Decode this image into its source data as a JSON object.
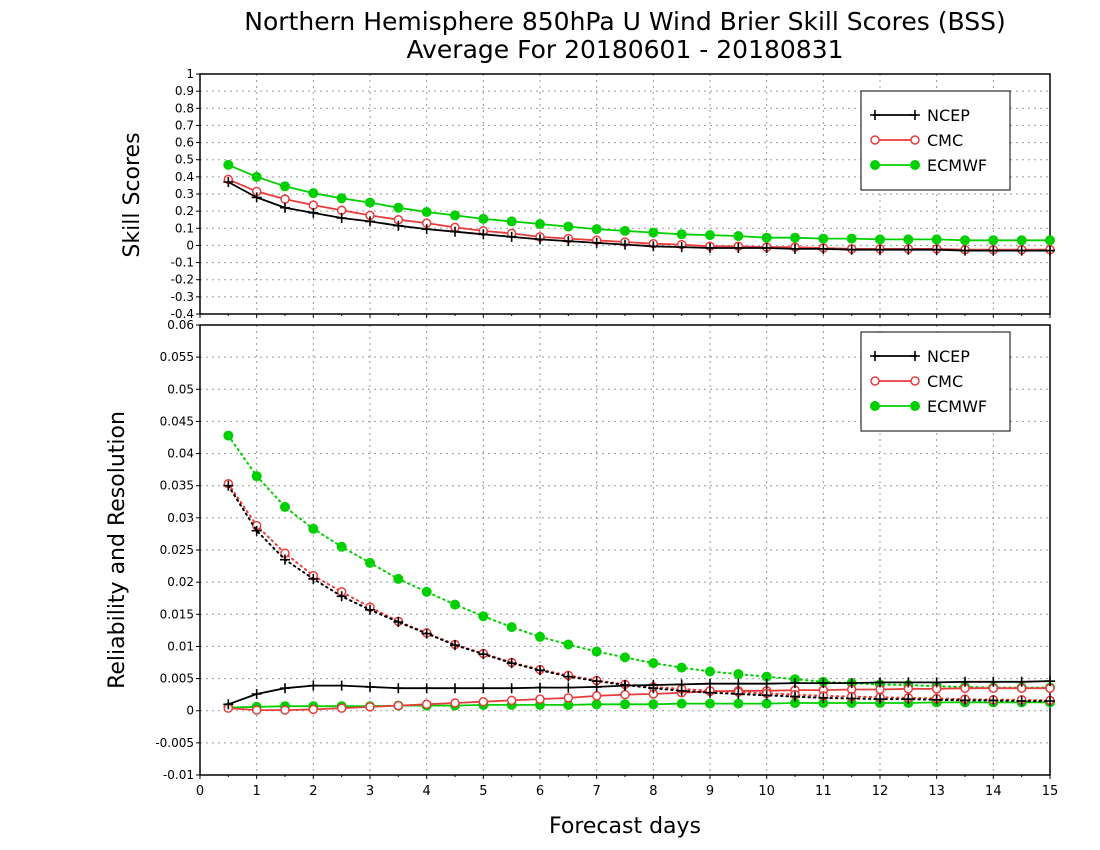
{
  "title": "Northern Hemisphere 850hPa U Wind Brier Skill Scores (BSS)",
  "subtitle": "Average For 20180601 - 20180831",
  "xlabel": "Forecast days",
  "colors": {
    "NCEP": "#000000",
    "CMC": "#e83c3c",
    "ECMWF": "#00d000",
    "grid": "#9a9a9a"
  },
  "chart_data": [
    {
      "type": "line",
      "panel": "top",
      "ylabel": "Skill Scores",
      "xlim": [
        0,
        15
      ],
      "ylim": [
        -0.4,
        1
      ],
      "x_ticks": [
        0,
        1,
        2,
        3,
        4,
        5,
        6,
        7,
        8,
        9,
        10,
        11,
        12,
        13,
        14,
        15
      ],
      "y_ticks": [
        "-0.4",
        "-0.3",
        "-0.2",
        "-0.1",
        "0",
        "0.1",
        "0.2",
        "0.3",
        "0.4",
        "0.5",
        "0.6",
        "0.7",
        "0.8",
        "0.9",
        "1"
      ],
      "grid": true,
      "legend_position": "top-right",
      "x": [
        0.5,
        1,
        1.5,
        2,
        2.5,
        3,
        3.5,
        4,
        4.5,
        5,
        5.5,
        6,
        6.5,
        7,
        7.5,
        8,
        8.5,
        9,
        9.5,
        10,
        10.5,
        11,
        11.5,
        12,
        12.5,
        13,
        13.5,
        14,
        14.5,
        15
      ],
      "series": [
        {
          "name": "NCEP",
          "marker": "plus",
          "values": [
            0.37,
            0.28,
            0.22,
            0.19,
            0.16,
            0.14,
            0.115,
            0.095,
            0.08,
            0.065,
            0.05,
            0.035,
            0.025,
            0.015,
            0.005,
            -0.005,
            -0.01,
            -0.015,
            -0.015,
            -0.015,
            -0.02,
            -0.02,
            -0.025,
            -0.025,
            -0.025,
            -0.025,
            -0.03,
            -0.03,
            -0.03,
            -0.03
          ]
        },
        {
          "name": "CMC",
          "marker": "open-circle",
          "values": [
            0.385,
            0.315,
            0.27,
            0.235,
            0.205,
            0.175,
            0.15,
            0.13,
            0.105,
            0.085,
            0.07,
            0.05,
            0.04,
            0.03,
            0.02,
            0.01,
            0.005,
            -0.005,
            -0.005,
            -0.01,
            -0.01,
            -0.015,
            -0.02,
            -0.02,
            -0.02,
            -0.02,
            -0.025,
            -0.025,
            -0.025,
            -0.025
          ]
        },
        {
          "name": "ECMWF",
          "marker": "filled-circle",
          "values": [
            0.47,
            0.4,
            0.345,
            0.305,
            0.275,
            0.25,
            0.22,
            0.195,
            0.175,
            0.155,
            0.14,
            0.125,
            0.11,
            0.095,
            0.085,
            0.075,
            0.065,
            0.06,
            0.055,
            0.045,
            0.045,
            0.04,
            0.04,
            0.035,
            0.035,
            0.035,
            0.03,
            0.03,
            0.03,
            0.03
          ]
        }
      ]
    },
    {
      "type": "line",
      "panel": "bottom",
      "ylabel": "Reliability and Resolution",
      "xlim": [
        0,
        15
      ],
      "ylim": [
        -0.01,
        0.06
      ],
      "x_ticks": [
        0,
        1,
        2,
        3,
        4,
        5,
        6,
        7,
        8,
        9,
        10,
        11,
        12,
        13,
        14,
        15
      ],
      "y_ticks": [
        "-0.01",
        "-0.005",
        "0",
        "0.005",
        "0.01",
        "0.015",
        "0.02",
        "0.025",
        "0.03",
        "0.035",
        "0.04",
        "0.045",
        "0.05",
        "0.055",
        "0.06"
      ],
      "grid": true,
      "legend_position": "top-right",
      "x": [
        0.5,
        1,
        1.5,
        2,
        2.5,
        3,
        3.5,
        4,
        4.5,
        5,
        5.5,
        6,
        6.5,
        7,
        7.5,
        8,
        8.5,
        9,
        9.5,
        10,
        10.5,
        11,
        11.5,
        12,
        12.5,
        13,
        13.5,
        14,
        14.5,
        15
      ],
      "series": [
        {
          "name": "NCEP",
          "marker": "plus",
          "line": "solid",
          "metric": "reliability",
          "values": [
            0.001,
            0.0026,
            0.0035,
            0.0039,
            0.0039,
            0.0037,
            0.0035,
            0.0035,
            0.0035,
            0.0035,
            0.0035,
            0.0036,
            0.0036,
            0.0037,
            0.0039,
            0.004,
            0.0041,
            0.0042,
            0.0042,
            0.0042,
            0.0043,
            0.0043,
            0.0043,
            0.0044,
            0.0044,
            0.0044,
            0.0045,
            0.0045,
            0.0045,
            0.0046
          ]
        },
        {
          "name": "NCEP",
          "marker": "plus",
          "line": "dotted",
          "metric": "resolution",
          "values": [
            0.035,
            0.028,
            0.0235,
            0.0205,
            0.0178,
            0.0157,
            0.0138,
            0.012,
            0.0102,
            0.0088,
            0.0074,
            0.0063,
            0.0053,
            0.0046,
            0.004,
            0.0035,
            0.0031,
            0.0028,
            0.0026,
            0.0024,
            0.0022,
            0.002,
            0.0019,
            0.0018,
            0.0018,
            0.0017,
            0.0016,
            0.0016,
            0.0015,
            0.0015
          ]
        },
        {
          "name": "CMC",
          "marker": "open-circle",
          "line": "solid",
          "metric": "reliability",
          "values": [
            0.0004,
            0.0001,
            0.0001,
            0.0002,
            0.0004,
            0.0006,
            0.0008,
            0.001,
            0.0012,
            0.0014,
            0.0016,
            0.0018,
            0.002,
            0.0023,
            0.0025,
            0.0026,
            0.0028,
            0.003,
            0.0031,
            0.0031,
            0.0032,
            0.0032,
            0.0033,
            0.0033,
            0.0034,
            0.0034,
            0.0035,
            0.0035,
            0.0035,
            0.0035
          ]
        },
        {
          "name": "CMC",
          "marker": "open-circle",
          "line": "dotted",
          "metric": "resolution",
          "values": [
            0.0353,
            0.0288,
            0.0245,
            0.021,
            0.0185,
            0.0161,
            0.0139,
            0.0121,
            0.0103,
            0.0089,
            0.0075,
            0.0064,
            0.0055,
            0.0047,
            0.0041,
            0.0037,
            0.0034,
            0.0031,
            0.0029,
            0.0027,
            0.0025,
            0.0023,
            0.0022,
            0.0021,
            0.002,
            0.0019,
            0.0018,
            0.0017,
            0.0017,
            0.0016
          ]
        },
        {
          "name": "ECMWF",
          "marker": "filled-circle",
          "line": "solid",
          "metric": "reliability",
          "values": [
            0.0005,
            0.0006,
            0.0007,
            0.0007,
            0.0007,
            0.0007,
            0.0008,
            0.0008,
            0.0008,
            0.0009,
            0.0009,
            0.0009,
            0.0009,
            0.001,
            0.001,
            0.001,
            0.0011,
            0.0011,
            0.0011,
            0.0011,
            0.0012,
            0.0012,
            0.0012,
            0.0012,
            0.0012,
            0.0013,
            0.0013,
            0.0013,
            0.0013,
            0.0013
          ]
        },
        {
          "name": "ECMWF",
          "marker": "filled-circle",
          "line": "dotted",
          "metric": "resolution",
          "values": [
            0.0428,
            0.0365,
            0.0317,
            0.0283,
            0.0255,
            0.023,
            0.0205,
            0.0185,
            0.0165,
            0.0147,
            0.013,
            0.0115,
            0.0103,
            0.0092,
            0.0083,
            0.0074,
            0.0067,
            0.0061,
            0.0057,
            0.0053,
            0.0049,
            0.0045,
            0.0043,
            0.0041,
            0.004,
            0.0038,
            0.0037,
            0.0036,
            0.0036,
            0.0036
          ]
        }
      ]
    }
  ]
}
